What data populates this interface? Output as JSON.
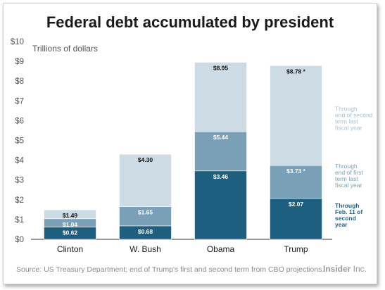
{
  "title": "Federal debt accumulated by president",
  "source": "Source: US Treasury Department; end of Trump's first and second term from CBO projections.",
  "brand": {
    "name": "Insider",
    "suffix": " Inc."
  },
  "colors": {
    "dark": "#1e5f80",
    "mid": "#79a0b6",
    "light": "#ccdbe4",
    "text_light": "#ffffff",
    "text_dark": "#111111",
    "axis": "#555555"
  },
  "chart_data": {
    "type": "bar",
    "stacked": true,
    "ylabel": "Trillions of dollars",
    "ylim": [
      0,
      10
    ],
    "yticks": [
      "$0",
      "$1",
      "$2",
      "$3",
      "$4",
      "$5",
      "$6",
      "$7",
      "$8",
      "$9",
      "$10"
    ],
    "grid": false,
    "categories": [
      "Clinton",
      "W. Bush",
      "Obama",
      "Trump"
    ],
    "bars": [
      {
        "president": "Clinton",
        "cumulative": [
          0.62,
          1.04,
          1.49
        ],
        "labels": [
          "$0.62",
          "$1.04",
          "$1.49"
        ]
      },
      {
        "president": "W. Bush",
        "cumulative": [
          0.68,
          1.65,
          4.3
        ],
        "labels": [
          "$0.68",
          "$1.65",
          "$4.30"
        ]
      },
      {
        "president": "Obama",
        "cumulative": [
          3.46,
          5.44,
          8.95
        ],
        "labels": [
          "$3.46",
          "$5.44",
          "$8.95"
        ]
      },
      {
        "president": "Trump",
        "cumulative": [
          2.07,
          3.73,
          8.78
        ],
        "labels": [
          "$2.07",
          "$3.73 *",
          "$8.78 *"
        ]
      }
    ],
    "annotations": [
      {
        "value": 6.0,
        "color": "light",
        "lines": [
          "Through",
          "end of second",
          "term last",
          "fiscal year"
        ]
      },
      {
        "value": 3.1,
        "color": "mid",
        "lines": [
          "Through",
          "end of first",
          "term last",
          "fiscal year"
        ]
      },
      {
        "value": 1.1,
        "color": "dark",
        "lines": [
          "Through",
          "Feb. 11 of",
          "second",
          "year"
        ]
      }
    ]
  }
}
